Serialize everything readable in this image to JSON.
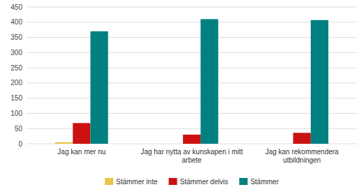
{
  "chart_data": {
    "type": "bar",
    "categories": [
      "Jag kan mer nu",
      "Jag har nytta av kunskapen i mitt\narbete",
      "Jag kan rekommendera\nutbildningen"
    ],
    "series": [
      {
        "name": "Stämmer inte",
        "color": "#e8c84a",
        "values": [
          5,
          0,
          0
        ]
      },
      {
        "name": "Stämmer delvis",
        "color": "#cc1111",
        "values": [
          68,
          30,
          36
        ]
      },
      {
        "name": "Stämmer",
        "color": "#008080",
        "values": [
          370,
          410,
          407
        ]
      }
    ],
    "ylim": [
      0,
      450
    ],
    "yticks": [
      0,
      50,
      100,
      150,
      200,
      250,
      300,
      350,
      400,
      450
    ],
    "grid": true,
    "legend": "bottom"
  }
}
